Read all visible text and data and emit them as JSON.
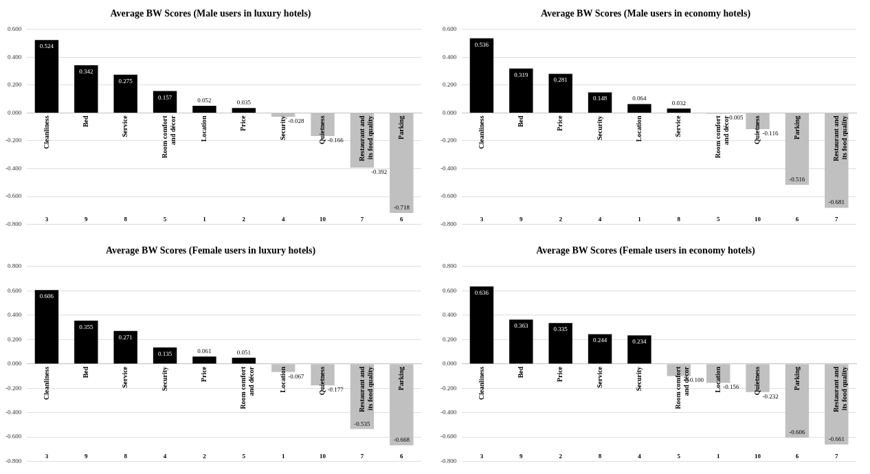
{
  "chart_data": [
    {
      "type": "bar",
      "title": "Average BW Scores (Male users in luxury hotels)",
      "categories": [
        "Cleanliness",
        "Bed",
        "Service",
        "Room comfort and décor",
        "Location",
        "Price",
        "Security",
        "Quietness",
        "Restaurant and its food quality",
        "Parking"
      ],
      "values": [
        0.524,
        0.342,
        0.275,
        0.157,
        0.052,
        0.035,
        -0.028,
        -0.166,
        -0.392,
        -0.718
      ],
      "colors": [
        "#000000",
        "#000000",
        "#000000",
        "#000000",
        "#000000",
        "#000000",
        "#c0c0c0",
        "#c0c0c0",
        "#c0c0c0",
        "#c0c0c0"
      ],
      "value_labels": [
        "0.524",
        "0.342",
        "0.275",
        "0.157",
        "0.052",
        "0.035",
        "-0.028",
        "-0.166",
        "-0.392",
        "-0.718"
      ],
      "grid": "y",
      "legend": false,
      "annotations": [
        "3",
        "9",
        "8",
        "5",
        "1",
        "2",
        "4",
        "10",
        "7",
        "6"
      ],
      "ylim": [
        -0.8,
        0.6
      ],
      "yticks": [
        {
          "value": -0.8,
          "label": "-0.800"
        },
        {
          "value": -0.6,
          "label": "-0.600"
        },
        {
          "value": -0.4,
          "label": "-0.400"
        },
        {
          "value": -0.2,
          "label": "-0.200"
        },
        {
          "value": 0,
          "label": "0.000"
        },
        {
          "value": 0.2,
          "label": "0.200"
        },
        {
          "value": 0.4,
          "label": "0.400"
        },
        {
          "value": 0.6,
          "label": "0.600"
        }
      ]
    },
    {
      "type": "bar",
      "title": "Average BW Scores (Male users in economy hotels)",
      "categories": [
        "Cleanliness",
        "Bed",
        "Price",
        "Security",
        "Location",
        "Service",
        "Room comfort and décor",
        "Quietness",
        "Parking",
        "Restaurant and its food quality"
      ],
      "values": [
        0.536,
        0.319,
        0.281,
        0.148,
        0.064,
        0.032,
        -0.005,
        -0.116,
        -0.516,
        -0.681
      ],
      "colors": [
        "#000000",
        "#000000",
        "#000000",
        "#000000",
        "#000000",
        "#000000",
        "#c0c0c0",
        "#c0c0c0",
        "#c0c0c0",
        "#c0c0c0"
      ],
      "value_labels": [
        "0.536",
        "0.319",
        "0.281",
        "0.148",
        "0.064",
        "0.032",
        "-0.005",
        "-0.116",
        "-0.516",
        "-0.681"
      ],
      "grid": "y",
      "legend": false,
      "annotations": [
        "3",
        "9",
        "2",
        "4",
        "1",
        "8",
        "5",
        "10",
        "6",
        "7"
      ],
      "ylim": [
        -0.8,
        0.6
      ],
      "yticks": [
        {
          "value": -0.8,
          "label": "-0.800"
        },
        {
          "value": -0.6,
          "label": "-0.600"
        },
        {
          "value": -0.4,
          "label": "-0.400"
        },
        {
          "value": -0.2,
          "label": "-0.200"
        },
        {
          "value": 0,
          "label": "0.000"
        },
        {
          "value": 0.2,
          "label": "0.200"
        },
        {
          "value": 0.4,
          "label": "0.400"
        },
        {
          "value": 0.6,
          "label": "0.600"
        }
      ]
    },
    {
      "type": "bar",
      "title": "Average BW Scores (Female users in luxury hotels)",
      "categories": [
        "Cleanliness",
        "Bed",
        "Service",
        "Security",
        "Price",
        "Room comfort and décor",
        "Location",
        "Quietness",
        "Restaurant and its food quality",
        "Parking"
      ],
      "values": [
        0.606,
        0.355,
        0.271,
        0.135,
        0.061,
        0.051,
        -0.067,
        -0.177,
        -0.535,
        -0.668
      ],
      "colors": [
        "#000000",
        "#000000",
        "#000000",
        "#000000",
        "#000000",
        "#000000",
        "#c0c0c0",
        "#c0c0c0",
        "#c0c0c0",
        "#c0c0c0"
      ],
      "value_labels": [
        "0.606",
        "0.355",
        "0.271",
        "0.135",
        "0.061",
        "0.051",
        "-0.067",
        "-0.177",
        "-0.535",
        "-0.668"
      ],
      "grid": "y",
      "legend": false,
      "annotations": [
        "3",
        "9",
        "8",
        "4",
        "2",
        "5",
        "1",
        "10",
        "7",
        "6"
      ],
      "ylim": [
        -0.8,
        0.8
      ],
      "yticks": [
        {
          "value": -0.8,
          "label": "-0.800"
        },
        {
          "value": -0.6,
          "label": "-0.600"
        },
        {
          "value": -0.4,
          "label": "-0.400"
        },
        {
          "value": -0.2,
          "label": "-0.200"
        },
        {
          "value": 0,
          "label": "0.000"
        },
        {
          "value": 0.2,
          "label": "0.200"
        },
        {
          "value": 0.4,
          "label": "0.400"
        },
        {
          "value": 0.6,
          "label": "0.600"
        },
        {
          "value": 0.8,
          "label": "0.800"
        }
      ]
    },
    {
      "type": "bar",
      "title": "Average BW Scores (Female users in economy hotels)",
      "categories": [
        "Cleanliness",
        "Bed",
        "Price",
        "Service",
        "Security",
        "Room comfort and décor",
        "Location",
        "Quietness",
        "Parking",
        "Restaurant and its food quality"
      ],
      "values": [
        0.636,
        0.363,
        0.335,
        0.244,
        0.234,
        -0.1,
        -0.156,
        -0.232,
        -0.606,
        -0.661
      ],
      "colors": [
        "#000000",
        "#000000",
        "#000000",
        "#000000",
        "#000000",
        "#c0c0c0",
        "#c0c0c0",
        "#c0c0c0",
        "#c0c0c0",
        "#c0c0c0"
      ],
      "value_labels": [
        "0.636",
        "0.363",
        "0.335",
        "0.244",
        "0.234",
        "-0.100",
        "-0.156",
        "-0.232",
        "-0.606",
        "-0.661"
      ],
      "grid": "y",
      "legend": false,
      "annotations": [
        "3",
        "9",
        "2",
        "8",
        "4",
        "5",
        "1",
        "10",
        "6",
        "7"
      ],
      "ylim": [
        -0.8,
        0.8
      ],
      "yticks": [
        {
          "value": -0.8,
          "label": "-0.800"
        },
        {
          "value": -0.6,
          "label": "-0.600"
        },
        {
          "value": -0.4,
          "label": "-0.400"
        },
        {
          "value": -0.2,
          "label": "-0.200"
        },
        {
          "value": 0,
          "label": "0.000"
        },
        {
          "value": 0.2,
          "label": "0.200"
        },
        {
          "value": 0.4,
          "label": "0.400"
        },
        {
          "value": 0.6,
          "label": "0.600"
        },
        {
          "value": 0.8,
          "label": "0.800"
        }
      ]
    }
  ]
}
